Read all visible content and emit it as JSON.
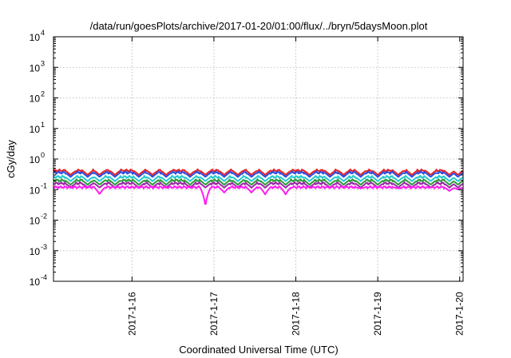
{
  "chart_data": {
    "type": "line",
    "title": "/data/run/goesPlots/archive/2017-01-20/01:00/flux/../bryn/5daysMoon.plot",
    "xlabel": "Coordinated Universal Time (UTC)",
    "ylabel": "cGy/day",
    "y_scale": "log",
    "ylim": [
      0.0001,
      10000
    ],
    "y_ticks": [
      {
        "mantissa": "10",
        "exp": "-4"
      },
      {
        "mantissa": "10",
        "exp": "-3"
      },
      {
        "mantissa": "10",
        "exp": "-2"
      },
      {
        "mantissa": "10",
        "exp": "-1"
      },
      {
        "mantissa": "10",
        "exp": "0"
      },
      {
        "mantissa": "10",
        "exp": "1"
      },
      {
        "mantissa": "10",
        "exp": "2"
      },
      {
        "mantissa": "10",
        "exp": "3"
      },
      {
        "mantissa": "10",
        "exp": "4"
      }
    ],
    "xlim": [
      "2017-01-15 01:00",
      "2017-01-20 01:00"
    ],
    "x_ticks": [
      "2017-1-16",
      "2017-1-17",
      "2017-1-18",
      "2017-1-19",
      "2017-1-20"
    ],
    "grid": true,
    "series": [
      {
        "color": "#e8262a",
        "level": 0.42
      },
      {
        "color": "#2d4de0",
        "level": 0.36
      },
      {
        "color": "#27c9d0",
        "level": 0.26
      },
      {
        "color": "#2f9a3a",
        "level": 0.2
      },
      {
        "color": "#9a2aa5",
        "level": 0.16
      },
      {
        "color": "#ff1ef0",
        "level": 0.12
      }
    ],
    "dips": [
      {
        "date": "2017-01-15 06:00",
        "depth": 0.18
      },
      {
        "date": "2017-01-15 11:00",
        "depth": 0.16
      },
      {
        "date": "2017-01-15 14:30",
        "depth": 0.07
      },
      {
        "date": "2017-01-15 19:00",
        "depth": 0.13
      },
      {
        "date": "2017-01-16 02:00",
        "depth": 0.17
      },
      {
        "date": "2017-01-16 06:00",
        "depth": 0.18
      },
      {
        "date": "2017-01-16 10:00",
        "depth": 0.15
      },
      {
        "date": "2017-01-16 17:00",
        "depth": 0.15
      },
      {
        "date": "2017-01-16 21:30",
        "depth": 0.028
      },
      {
        "date": "2017-01-17 03:00",
        "depth": 0.08
      },
      {
        "date": "2017-01-17 07:00",
        "depth": 0.14
      },
      {
        "date": "2017-01-17 11:00",
        "depth": 0.08
      },
      {
        "date": "2017-01-17 15:00",
        "depth": 0.07
      },
      {
        "date": "2017-01-17 21:00",
        "depth": 0.07
      },
      {
        "date": "2017-01-18 04:00",
        "depth": 0.13
      },
      {
        "date": "2017-01-18 10:00",
        "depth": 0.17
      },
      {
        "date": "2017-01-18 14:00",
        "depth": 0.16
      },
      {
        "date": "2017-01-18 19:00",
        "depth": 0.11
      },
      {
        "date": "2017-01-19 00:00",
        "depth": 0.14
      },
      {
        "date": "2017-01-19 06:00",
        "depth": 0.11
      },
      {
        "date": "2017-01-19 10:00",
        "depth": 0.14
      },
      {
        "date": "2017-01-19 15:30",
        "depth": 0.12
      },
      {
        "date": "2017-01-19 21:00",
        "depth": 0.09
      },
      {
        "date": "2017-01-19 23:30",
        "depth": 0.1
      }
    ]
  }
}
